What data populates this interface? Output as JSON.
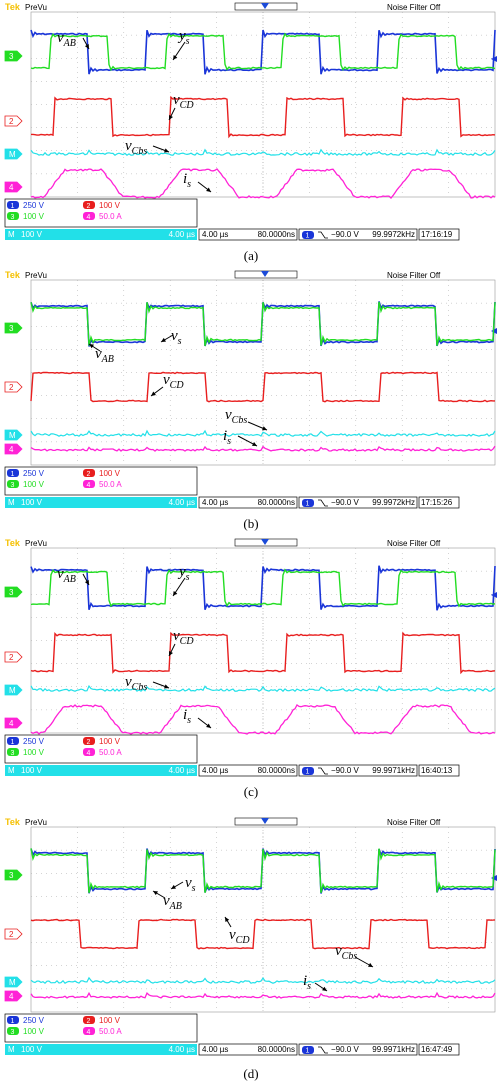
{
  "colors": {
    "ch1": "#1a35d8",
    "ch2": "#e81e1e",
    "ch3": "#22dd22",
    "ch4": "#ff22d6",
    "math": "#22e0e8"
  },
  "panels": [
    {
      "caption": "(a)",
      "status": {
        "brand": "Tek",
        "mode": "PreVu",
        "noise": "Noise Filter Off"
      },
      "readout": {
        "ch1_scale": "250 V",
        "ch2_scale": "100 V",
        "ch3_scale": "100 V",
        "ch4_scale": "50.0 A",
        "math_scale": "100 V",
        "math_time": "4.00 µs",
        "timebase": "4.00 µs",
        "sample": "80.0000ns",
        "trigger_ch": "1",
        "trigger_level": "−90.0 V",
        "frequency": "99.9972kHz",
        "time": "17:16:19"
      },
      "labels": {
        "vab": {
          "base": "v",
          "sub": "AB"
        },
        "ys": {
          "base": "y",
          "sub": "s"
        },
        "vcd": {
          "base": "v",
          "sub": "CD"
        },
        "vcbs": {
          "base": "v",
          "sub": "Cbs"
        },
        "is": {
          "base": "i",
          "sub": "s"
        }
      }
    },
    {
      "caption": "(b)",
      "status": {
        "brand": "Tek",
        "mode": "PreVu",
        "noise": "Noise Filter Off"
      },
      "readout": {
        "ch1_scale": "250 V",
        "ch2_scale": "100 V",
        "ch3_scale": "100 V",
        "ch4_scale": "50.0 A",
        "math_scale": "100 V",
        "math_time": "4.00 µs",
        "timebase": "4.00 µs",
        "sample": "80.0000ns",
        "trigger_ch": "1",
        "trigger_level": "−90.0 V",
        "frequency": "99.9972kHz",
        "time": "17:15:26"
      },
      "labels": {
        "vab": {
          "base": "v",
          "sub": "AB"
        },
        "ys": {
          "base": "v",
          "sub": "s"
        },
        "vcd": {
          "base": "v",
          "sub": "CD"
        },
        "vcbs": {
          "base": "v",
          "sub": "Cbs"
        },
        "is": {
          "base": "i",
          "sub": "s"
        }
      }
    },
    {
      "caption": "(c)",
      "status": {
        "brand": "Tek",
        "mode": "PreVu",
        "noise": "Noise Filter Off"
      },
      "readout": {
        "ch1_scale": "250 V",
        "ch2_scale": "100 V",
        "ch3_scale": "100 V",
        "ch4_scale": "50.0 A",
        "math_scale": "100 V",
        "math_time": "4.00 µs",
        "timebase": "4.00 µs",
        "sample": "80.0000ns",
        "trigger_ch": "1",
        "trigger_level": "−90.0 V",
        "frequency": "99.9971kHz",
        "time": "16:40:13"
      },
      "labels": {
        "vab": {
          "base": "v",
          "sub": "AB"
        },
        "ys": {
          "base": "y",
          "sub": "s"
        },
        "vcd": {
          "base": "v",
          "sub": "CD"
        },
        "vcbs": {
          "base": "v",
          "sub": "Cbs"
        },
        "is": {
          "base": "i",
          "sub": "s"
        }
      }
    },
    {
      "caption": "(d)",
      "status": {
        "brand": "Tek",
        "mode": "PreVu",
        "noise": "Noise Filter Off"
      },
      "readout": {
        "ch1_scale": "250 V",
        "ch2_scale": "100 V",
        "ch3_scale": "100 V",
        "ch4_scale": "50.0 A",
        "math_scale": "100 V",
        "math_time": "4.00 µs",
        "timebase": "4.00 µs",
        "sample": "80.0000ns",
        "trigger_ch": "1",
        "trigger_level": "−90.0 V",
        "frequency": "99.9971kHz",
        "time": "16:47:49"
      },
      "labels": {
        "vab": {
          "base": "v",
          "sub": "AB"
        },
        "ys": {
          "base": "v",
          "sub": "s"
        },
        "vcd": {
          "base": "v",
          "sub": "CD"
        },
        "vcbs": {
          "base": "v",
          "sub": "Cbs"
        },
        "is": {
          "base": "i",
          "sub": "s"
        }
      }
    }
  ],
  "chart_data": [
    {
      "type": "line",
      "panel": "(a)",
      "title": "",
      "xlabel": "",
      "ylabel": "",
      "x_unit": "µs",
      "x_range": [
        0,
        40
      ],
      "period_us": 10,
      "grid": true,
      "series": [
        {
          "name": "vAB",
          "channel": 1,
          "shape": "square",
          "duty": 0.5,
          "phase_deg": 0
        },
        {
          "name": "ys",
          "channel": 3,
          "shape": "square",
          "duty": 0.5,
          "phase_deg": 56
        },
        {
          "name": "vCD",
          "channel": 2,
          "shape": "square",
          "duty": 0.5,
          "phase_deg": 72
        },
        {
          "name": "vCbs",
          "channel": "M",
          "shape": "flat",
          "phase_deg": 0
        },
        {
          "name": "is",
          "channel": 4,
          "shape": "trapezoid",
          "phase_deg": 40
        }
      ]
    },
    {
      "type": "line",
      "panel": "(b)",
      "title": "",
      "xlabel": "",
      "ylabel": "",
      "x_unit": "µs",
      "x_range": [
        0,
        40
      ],
      "period_us": 10,
      "grid": true,
      "series": [
        {
          "name": "vAB",
          "channel": 1,
          "shape": "square",
          "duty": 0.5,
          "phase_deg": 0
        },
        {
          "name": "vs",
          "channel": 3,
          "shape": "square",
          "duty": 0.5,
          "phase_deg": 0
        },
        {
          "name": "vCD",
          "channel": 2,
          "shape": "square",
          "duty": 0.5,
          "phase_deg": 3
        },
        {
          "name": "vCbs",
          "channel": "M",
          "shape": "flat",
          "phase_deg": 0
        },
        {
          "name": "is",
          "channel": 4,
          "shape": "flat",
          "phase_deg": 0
        }
      ]
    },
    {
      "type": "line",
      "panel": "(c)",
      "title": "",
      "xlabel": "",
      "ylabel": "",
      "x_unit": "µs",
      "x_range": [
        0,
        40
      ],
      "period_us": 10,
      "grid": true,
      "series": [
        {
          "name": "vAB",
          "channel": 1,
          "shape": "square",
          "duty": 0.5,
          "phase_deg": 0
        },
        {
          "name": "ys",
          "channel": 3,
          "shape": "square",
          "duty": 0.5,
          "phase_deg": 56
        },
        {
          "name": "vCD",
          "channel": 2,
          "shape": "square",
          "duty": 0.5,
          "phase_deg": 72
        },
        {
          "name": "vCbs",
          "channel": "M",
          "shape": "flat",
          "phase_deg": 0
        },
        {
          "name": "is",
          "channel": 4,
          "shape": "trapezoid",
          "phase_deg": 40
        }
      ]
    },
    {
      "type": "line",
      "panel": "(d)",
      "title": "",
      "xlabel": "",
      "ylabel": "",
      "x_unit": "µs",
      "x_range": [
        0,
        40
      ],
      "period_us": 10,
      "grid": true,
      "series": [
        {
          "name": "vAB",
          "channel": 1,
          "shape": "square",
          "duty": 0.5,
          "phase_deg": 0
        },
        {
          "name": "vs",
          "channel": 3,
          "shape": "square",
          "duty": 0.5,
          "phase_deg": 0
        },
        {
          "name": "vCD",
          "channel": 2,
          "shape": "square",
          "duty": 0.5,
          "phase_deg": -28
        },
        {
          "name": "vCbs",
          "channel": "M",
          "shape": "flat",
          "phase_deg": 0
        },
        {
          "name": "is",
          "channel": 4,
          "shape": "flat",
          "phase_deg": 0
        }
      ]
    }
  ]
}
